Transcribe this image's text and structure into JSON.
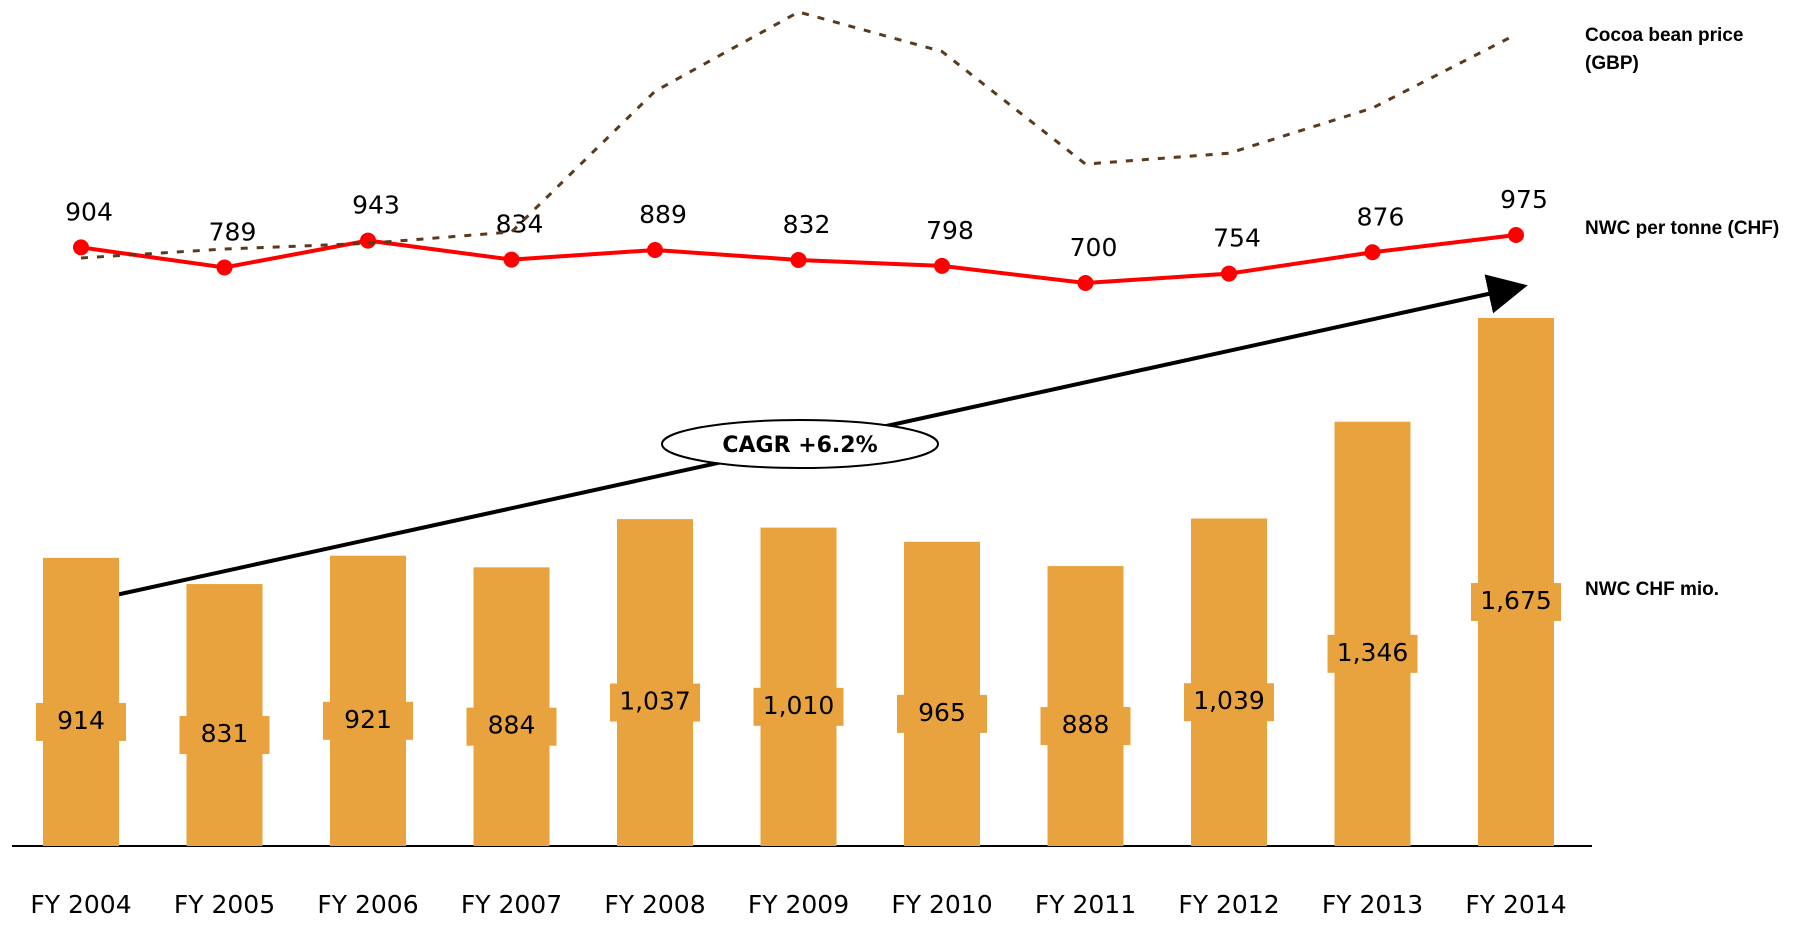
{
  "chart_data": {
    "type": "bar",
    "categories": [
      "FY 2004",
      "FY 2005",
      "FY 2006",
      "FY 2007",
      "FY 2008",
      "FY 2009",
      "FY 2010",
      "FY 2011",
      "FY 2012",
      "FY 2013",
      "FY 2014"
    ],
    "series": [
      {
        "name": "NWC CHF mio.",
        "type": "bar",
        "color": "#e8a33f",
        "values": [
          914,
          831,
          921,
          884,
          1037,
          1010,
          965,
          888,
          1039,
          1346,
          1675
        ],
        "value_labels": [
          "914",
          "831",
          "921",
          "884",
          "1,037",
          "1,010",
          "965",
          "888",
          "1,039",
          "1,346",
          "1,675"
        ]
      },
      {
        "name": "NWC per tonne (CHF)",
        "type": "line",
        "color": "#ff0000",
        "values": [
          904,
          789,
          943,
          834,
          889,
          832,
          798,
          700,
          754,
          876,
          975
        ]
      },
      {
        "name": "Cocoa bean price (GBP)",
        "type": "line",
        "color": "#5a3a1a",
        "dashed": true,
        "values": [
          890,
          928,
          952,
          1000,
          1595,
          1930,
          1763,
          1287,
          1333,
          1524,
          1835
        ]
      }
    ],
    "annotations": [
      "CAGR +6.2%"
    ]
  }
}
